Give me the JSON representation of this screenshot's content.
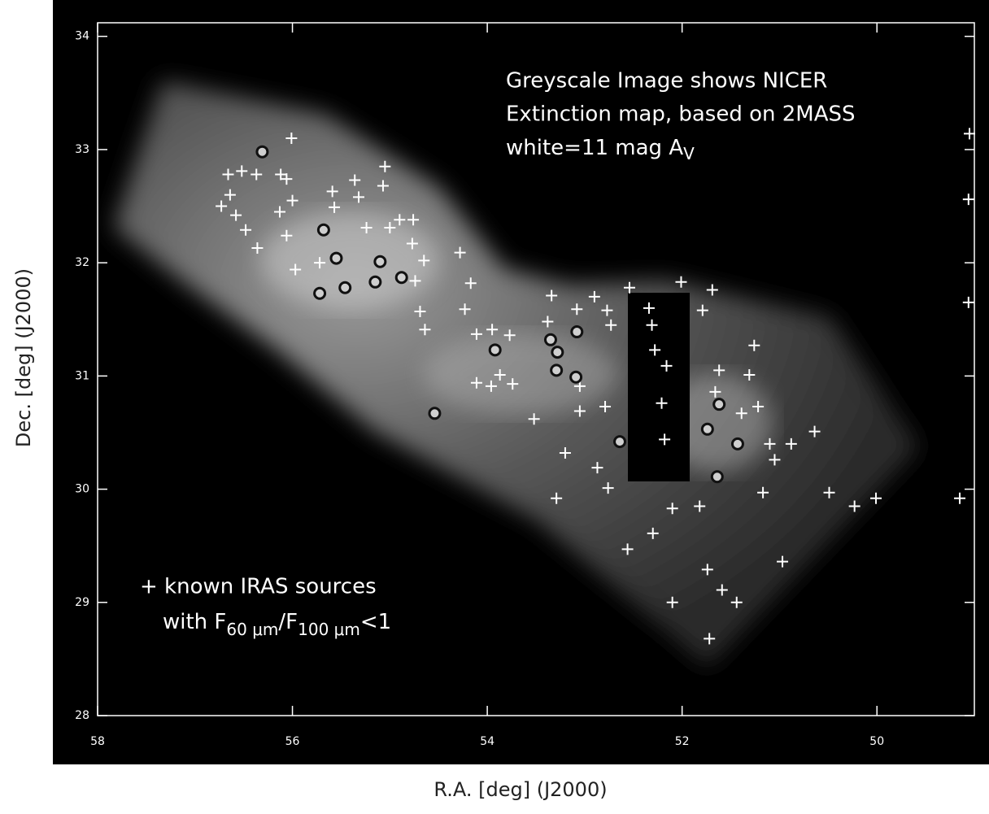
{
  "chart_data": {
    "type": "scatter",
    "annotation": {
      "lines": [
        "Greyscale Image shows NICER",
        "Extinction map, based on 2MASS"
      ],
      "line3": {
        "text": "white=11 mag A",
        "sub": "V"
      }
    },
    "legend_text": {
      "line1": "+ known IRAS sources",
      "line2": [
        "with F",
        "60 μm",
        "/F",
        "100 μm",
        "<1"
      ]
    },
    "x_label": "R.A. [deg] (J2000)",
    "y_label": "Dec. [deg] (J2000)",
    "xlim": [
      58,
      49
    ],
    "ylim": [
      28,
      34.12
    ],
    "xticks": [
      58,
      56,
      54,
      52,
      50
    ],
    "yticks": [
      28,
      29,
      30,
      31,
      32,
      33,
      34
    ],
    "series": [
      {
        "marker": "plus",
        "color": "#ffffff",
        "x": [
          56.01,
          56.66,
          56.52,
          56.37,
          56.64,
          56.73,
          56.58,
          56.48,
          56.36,
          56.12,
          56.06,
          56.13,
          56.06,
          56.0,
          55.97,
          55.72,
          55.59,
          55.57,
          55.36,
          55.32,
          55.24,
          55.05,
          55.07,
          55.0,
          54.9,
          54.76,
          54.77,
          54.65,
          54.74,
          54.69,
          54.64,
          54.28,
          54.17,
          54.23,
          54.11,
          53.95,
          53.77,
          54.11,
          53.96,
          53.87,
          53.74,
          53.52,
          53.34,
          53.38,
          53.2,
          53.29,
          53.08,
          53.05,
          53.05,
          52.9,
          52.77,
          52.73,
          52.79,
          52.87,
          52.76,
          52.56,
          52.54,
          52.34,
          52.31,
          52.28,
          52.16,
          52.21,
          52.18,
          52.3,
          52.1,
          52.01,
          51.79,
          51.69,
          51.62,
          51.66,
          51.31,
          51.39,
          51.26,
          51.22,
          51.1,
          51.05,
          50.97,
          51.17,
          51.82,
          51.74,
          51.59,
          51.44,
          51.72,
          52.1,
          50.64,
          50.49,
          50.01,
          50.23,
          50.88,
          49.05,
          49.06,
          49.06,
          49.15
        ],
        "y": [
          33.1,
          32.78,
          32.81,
          32.78,
          32.6,
          32.5,
          32.42,
          32.29,
          32.13,
          32.78,
          32.74,
          32.45,
          32.24,
          32.55,
          31.94,
          32.0,
          32.63,
          32.49,
          32.73,
          32.58,
          32.31,
          32.85,
          32.68,
          32.31,
          32.38,
          32.38,
          32.17,
          32.02,
          31.84,
          31.57,
          31.41,
          32.09,
          31.82,
          31.59,
          31.37,
          31.41,
          31.36,
          30.94,
          30.91,
          31.01,
          30.93,
          30.62,
          31.71,
          31.48,
          30.32,
          29.92,
          31.59,
          30.91,
          30.69,
          31.7,
          31.58,
          31.45,
          30.73,
          30.19,
          30.01,
          29.47,
          31.78,
          31.6,
          31.45,
          31.23,
          31.09,
          30.76,
          30.44,
          29.61,
          29.83,
          31.83,
          31.58,
          31.76,
          31.05,
          30.86,
          31.01,
          30.67,
          31.27,
          30.73,
          30.4,
          30.26,
          29.36,
          29.97,
          29.85,
          29.29,
          29.11,
          29.0,
          28.68,
          29.0,
          30.51,
          29.97,
          29.92,
          29.85,
          30.4,
          33.14,
          32.56,
          31.65,
          29.92
        ]
      },
      {
        "marker": "circle",
        "color": "#111111",
        "x": [
          56.31,
          55.68,
          55.55,
          55.72,
          55.46,
          55.1,
          55.15,
          54.88,
          53.92,
          54.54,
          53.35,
          53.28,
          53.29,
          53.08,
          53.09,
          52.64,
          51.62,
          51.74,
          51.43,
          51.64
        ],
        "y": [
          32.98,
          32.29,
          32.04,
          31.73,
          31.78,
          32.01,
          31.83,
          31.87,
          31.23,
          30.67,
          31.32,
          31.21,
          31.05,
          31.39,
          30.99,
          30.42,
          30.75,
          30.53,
          30.4,
          30.11
        ]
      }
    ]
  }
}
